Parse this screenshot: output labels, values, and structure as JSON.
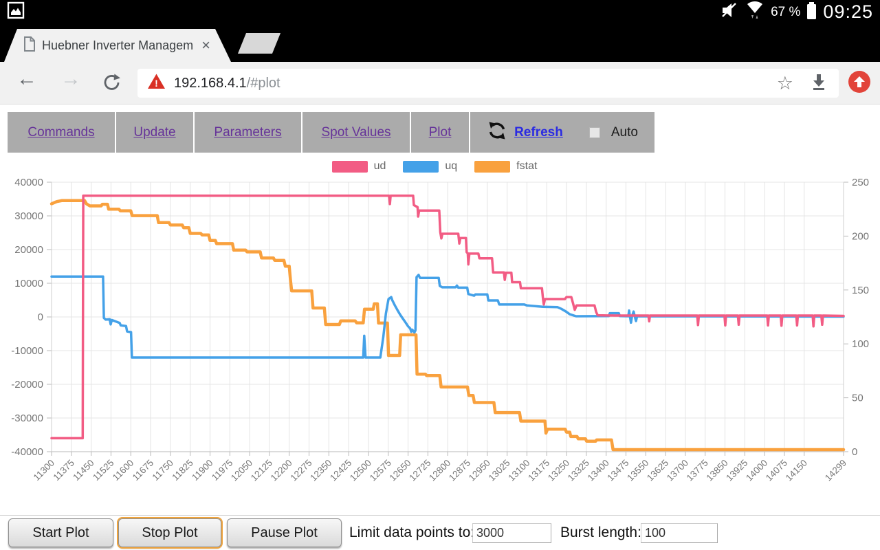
{
  "status_bar": {
    "time": "09:25",
    "battery_pct": "67 %"
  },
  "tab": {
    "title": "Huebner Inverter Managem",
    "close_glyph": "×"
  },
  "toolbar": {
    "back_glyph": "←",
    "forward_glyph": "→",
    "url_host": "192.168.4.1",
    "url_path": "/#plot",
    "star_glyph": "☆"
  },
  "nav": {
    "items": [
      {
        "label": "Commands"
      },
      {
        "label": "Update"
      },
      {
        "label": "Parameters"
      },
      {
        "label": "Spot Values"
      },
      {
        "label": "Plot"
      }
    ],
    "refresh_label": "Refresh",
    "auto_label": "Auto"
  },
  "legend": [
    {
      "label": "ud",
      "color": "#F25C84"
    },
    {
      "label": "uq",
      "color": "#44A1E8"
    },
    {
      "label": "fstat",
      "color": "#F9A13E"
    }
  ],
  "controls": {
    "start": "Start Plot",
    "stop": "Stop Plot",
    "pause": "Pause Plot",
    "limit_label": "Limit data points to:",
    "limit_value": "3000",
    "burst_label": "Burst length:",
    "burst_value": "100"
  },
  "chart_data": {
    "type": "line",
    "x_range": [
      11300,
      14299
    ],
    "x_ticks": [
      11300,
      11375,
      11450,
      11525,
      11600,
      11675,
      11750,
      11825,
      11900,
      11975,
      12050,
      12125,
      12200,
      12275,
      12350,
      12425,
      12500,
      12575,
      12650,
      12725,
      12800,
      12875,
      12950,
      13025,
      13100,
      13175,
      13250,
      13325,
      13400,
      13475,
      13550,
      13625,
      13700,
      13775,
      13850,
      13925,
      14000,
      14075,
      14150,
      14299
    ],
    "left_axis": {
      "range": [
        -40000,
        40000
      ],
      "ticks": [
        40000,
        30000,
        20000,
        10000,
        0,
        -10000,
        -20000,
        -30000,
        -40000
      ]
    },
    "right_axis": {
      "range": [
        0,
        250
      ],
      "ticks": [
        250,
        200,
        150,
        100,
        50,
        0
      ]
    },
    "grid": true,
    "legend_position": "top",
    "series": [
      {
        "name": "ud",
        "axis": "left",
        "color": "#F25C84",
        "width": 3.5,
        "points": [
          [
            11300,
            -36000
          ],
          [
            11418,
            -36000
          ],
          [
            11420,
            36000
          ],
          [
            12578,
            36000
          ],
          [
            12581,
            33500
          ],
          [
            12584,
            36000
          ],
          [
            12669,
            36000
          ],
          [
            12672,
            33200
          ],
          [
            12686,
            32600
          ],
          [
            12688,
            29800
          ],
          [
            12692,
            31600
          ],
          [
            12768,
            31600
          ],
          [
            12772,
            25200
          ],
          [
            12776,
            23300
          ],
          [
            12780,
            24700
          ],
          [
            12840,
            24700
          ],
          [
            12844,
            21800
          ],
          [
            12848,
            23400
          ],
          [
            12869,
            23400
          ],
          [
            12872,
            19200
          ],
          [
            12876,
            18900
          ],
          [
            12878,
            15600
          ],
          [
            12882,
            18800
          ],
          [
            12916,
            18800
          ],
          [
            12920,
            17400
          ],
          [
            12968,
            17400
          ],
          [
            12972,
            13200
          ],
          [
            13013,
            13200
          ],
          [
            13016,
            11000
          ],
          [
            13020,
            13100
          ],
          [
            13041,
            13100
          ],
          [
            13044,
            10300
          ],
          [
            13074,
            10300
          ],
          [
            13077,
            8500
          ],
          [
            13157,
            8500
          ],
          [
            13161,
            5200
          ],
          [
            13164,
            3700
          ],
          [
            13168,
            5300
          ],
          [
            13244,
            5300
          ],
          [
            13250,
            5900
          ],
          [
            13268,
            5900
          ],
          [
            13274,
            4200
          ],
          [
            13281,
            2100
          ],
          [
            13288,
            3400
          ],
          [
            13356,
            3400
          ],
          [
            13362,
            1500
          ],
          [
            13368,
            500
          ],
          [
            13430,
            400
          ],
          [
            13560,
            400
          ],
          [
            13563,
            -1300
          ],
          [
            13566,
            400
          ],
          [
            13745,
            400
          ],
          [
            13748,
            -2400
          ],
          [
            13751,
            400
          ],
          [
            13848,
            400
          ],
          [
            13851,
            -2500
          ],
          [
            13854,
            400
          ],
          [
            13899,
            400
          ],
          [
            13902,
            -2300
          ],
          [
            13905,
            400
          ],
          [
            14010,
            400
          ],
          [
            14013,
            -2500
          ],
          [
            14016,
            400
          ],
          [
            14061,
            400
          ],
          [
            14064,
            -2600
          ],
          [
            14067,
            400
          ],
          [
            14120,
            400
          ],
          [
            14123,
            -2500
          ],
          [
            14126,
            400
          ],
          [
            14182,
            400
          ],
          [
            14185,
            -2800
          ],
          [
            14188,
            400
          ],
          [
            14215,
            400
          ],
          [
            14218,
            -2300
          ],
          [
            14221,
            400
          ],
          [
            14299,
            300
          ]
        ]
      },
      {
        "name": "uq",
        "axis": "left",
        "color": "#44A1E8",
        "width": 3.5,
        "points": [
          [
            11300,
            12000
          ],
          [
            11495,
            12000
          ],
          [
            11498,
            -300
          ],
          [
            11505,
            -800
          ],
          [
            11520,
            -700
          ],
          [
            11524,
            -2200
          ],
          [
            11528,
            -900
          ],
          [
            11545,
            -1400
          ],
          [
            11558,
            -1800
          ],
          [
            11562,
            -2500
          ],
          [
            11582,
            -2700
          ],
          [
            11586,
            -4300
          ],
          [
            11601,
            -4500
          ],
          [
            11604,
            -12050
          ],
          [
            12480,
            -12050
          ],
          [
            12484,
            -5600
          ],
          [
            12489,
            -12050
          ],
          [
            12545,
            -12050
          ],
          [
            12556,
            -6000
          ],
          [
            12566,
            1000
          ],
          [
            12576,
            5300
          ],
          [
            12586,
            5900
          ],
          [
            12590,
            5000
          ],
          [
            12600,
            3400
          ],
          [
            12610,
            2000
          ],
          [
            12620,
            700
          ],
          [
            12630,
            -500
          ],
          [
            12640,
            -1600
          ],
          [
            12650,
            -2800
          ],
          [
            12658,
            -3400
          ],
          [
            12662,
            -4400
          ],
          [
            12666,
            -3800
          ],
          [
            12674,
            -4600
          ],
          [
            12678,
            -4000
          ],
          [
            12682,
            11800
          ],
          [
            12690,
            12500
          ],
          [
            12695,
            11600
          ],
          [
            12766,
            11600
          ],
          [
            12770,
            9200
          ],
          [
            12780,
            8800
          ],
          [
            12830,
            8800
          ],
          [
            12835,
            9300
          ],
          [
            12840,
            8700
          ],
          [
            12874,
            8700
          ],
          [
            12878,
            6800
          ],
          [
            12900,
            6300
          ],
          [
            12905,
            6700
          ],
          [
            12950,
            6700
          ],
          [
            12954,
            4900
          ],
          [
            12990,
            4900
          ],
          [
            12995,
            3700
          ],
          [
            13090,
            3700
          ],
          [
            13100,
            3400
          ],
          [
            13160,
            3000
          ],
          [
            13216,
            2900
          ],
          [
            13230,
            2400
          ],
          [
            13248,
            1600
          ],
          [
            13262,
            800
          ],
          [
            13286,
            200
          ],
          [
            13410,
            250
          ],
          [
            13414,
            1100
          ],
          [
            13448,
            1100
          ],
          [
            13452,
            250
          ],
          [
            13484,
            200
          ],
          [
            13487,
            1900
          ],
          [
            13490,
            200
          ],
          [
            13494,
            -1700
          ],
          [
            13498,
            200
          ],
          [
            13504,
            1600
          ],
          [
            13508,
            200
          ],
          [
            13513,
            -1200
          ],
          [
            13517,
            200
          ],
          [
            14299,
            100
          ]
        ]
      },
      {
        "name": "fstat",
        "axis": "right",
        "color": "#F9A13E",
        "width": 4.5,
        "points": [
          [
            11300,
            230
          ],
          [
            11320,
            232
          ],
          [
            11340,
            233
          ],
          [
            11425,
            233
          ],
          [
            11432,
            230
          ],
          [
            11445,
            228
          ],
          [
            11488,
            228
          ],
          [
            11492,
            229.5
          ],
          [
            11512,
            229.5
          ],
          [
            11516,
            225
          ],
          [
            11555,
            225
          ],
          [
            11560,
            223.5
          ],
          [
            11600,
            223.5
          ],
          [
            11605,
            219
          ],
          [
            11700,
            219
          ],
          [
            11705,
            212.5
          ],
          [
            11745,
            212.5
          ],
          [
            11750,
            210.3
          ],
          [
            11795,
            210.3
          ],
          [
            11800,
            207.8
          ],
          [
            11820,
            207.8
          ],
          [
            11825,
            202.5
          ],
          [
            11865,
            202.5
          ],
          [
            11870,
            201
          ],
          [
            11895,
            201
          ],
          [
            11900,
            196
          ],
          [
            11920,
            196
          ],
          [
            11925,
            193
          ],
          [
            11985,
            193
          ],
          [
            11990,
            187
          ],
          [
            12035,
            187
          ],
          [
            12040,
            185.3
          ],
          [
            12090,
            185.3
          ],
          [
            12095,
            179.7
          ],
          [
            12140,
            179.7
          ],
          [
            12145,
            177.5
          ],
          [
            12180,
            177.5
          ],
          [
            12185,
            172
          ],
          [
            12200,
            172
          ],
          [
            12204,
            160.6
          ],
          [
            12209,
            149.2
          ],
          [
            12285,
            149.2
          ],
          [
            12290,
            133.3
          ],
          [
            12333,
            133.3
          ],
          [
            12338,
            118
          ],
          [
            12390,
            118
          ],
          [
            12395,
            121.3
          ],
          [
            12450,
            121.3
          ],
          [
            12455,
            119.5
          ],
          [
            12480,
            119.5
          ],
          [
            12485,
            132.2
          ],
          [
            12518,
            132.2
          ],
          [
            12522,
            137.2
          ],
          [
            12534,
            137.2
          ],
          [
            12538,
            119.3
          ],
          [
            12572,
            119.3
          ],
          [
            12576,
            89.3
          ],
          [
            12618,
            89.3
          ],
          [
            12622,
            108.4
          ],
          [
            12680,
            108.4
          ],
          [
            12684,
            71.9
          ],
          [
            12716,
            71.9
          ],
          [
            12720,
            70.6
          ],
          [
            12770,
            70.6
          ],
          [
            12775,
            60
          ],
          [
            12875,
            60
          ],
          [
            12880,
            52.2
          ],
          [
            12896,
            52.2
          ],
          [
            12901,
            45.6
          ],
          [
            12975,
            45.6
          ],
          [
            12980,
            36.3
          ],
          [
            13072,
            36.3
          ],
          [
            13077,
            28.4
          ],
          [
            13168,
            28.4
          ],
          [
            13172,
            17.2
          ],
          [
            13178,
            20.9
          ],
          [
            13245,
            20.9
          ],
          [
            13250,
            18.1
          ],
          [
            13262,
            18.1
          ],
          [
            13266,
            14.1
          ],
          [
            13290,
            14.1
          ],
          [
            13294,
            11.9
          ],
          [
            13322,
            11.9
          ],
          [
            13326,
            9.7
          ],
          [
            13360,
            9.7
          ],
          [
            13364,
            10.9
          ],
          [
            13420,
            10.9
          ],
          [
            13426,
            1.9
          ],
          [
            14299,
            1.9
          ]
        ]
      }
    ]
  }
}
